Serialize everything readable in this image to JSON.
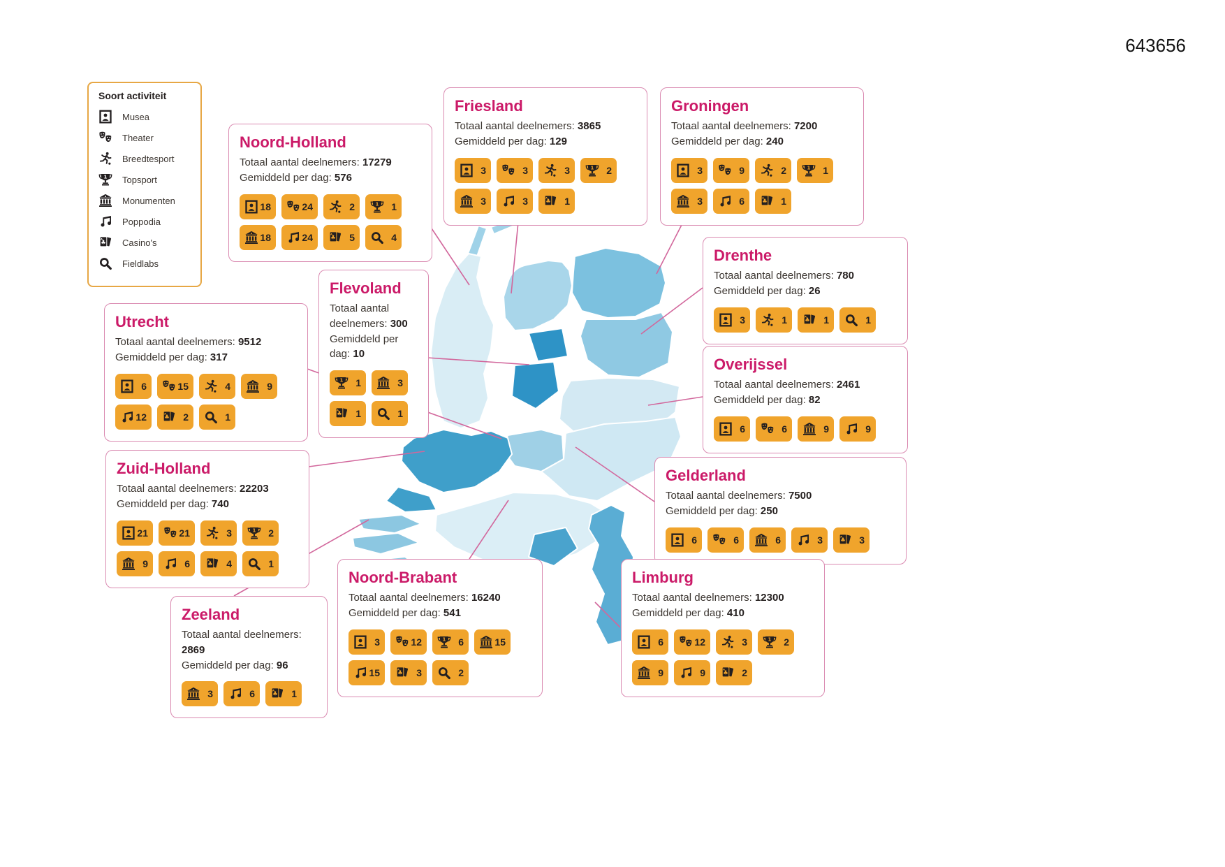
{
  "page": {
    "number": "643656"
  },
  "labels": {
    "total": "Totaal aantal deelnemers:",
    "per_day": "Gemiddeld per dag:"
  },
  "legend": {
    "title": "Soort activiteit",
    "items": [
      {
        "icon": "musea",
        "label": "Musea"
      },
      {
        "icon": "theater",
        "label": "Theater"
      },
      {
        "icon": "breedtesport",
        "label": "Breedtesport"
      },
      {
        "icon": "topsport",
        "label": "Topsport"
      },
      {
        "icon": "monumenten",
        "label": "Monumenten"
      },
      {
        "icon": "poppodia",
        "label": "Poppodia"
      },
      {
        "icon": "casinos",
        "label": "Casino's"
      },
      {
        "icon": "fieldlabs",
        "label": "Fieldlabs"
      }
    ]
  },
  "colors": {
    "accent_pink": "#cb1a68",
    "card_border_pink": "#da8ab1",
    "badge_orange": "#f0a42c",
    "legend_border_orange": "#e7a744",
    "icon_black": "#231f20",
    "map_blues": [
      "#dcEEf6",
      "#b8dcec",
      "#9fd2e8",
      "#8fc9e3",
      "#5aadd4",
      "#3f9fca",
      "#2e93c6"
    ]
  },
  "provinces": [
    {
      "id": "noord-holland",
      "name": "Noord-Holland",
      "total": "17279",
      "per_day": "576",
      "badges": [
        {
          "type": "musea",
          "value": "18"
        },
        {
          "type": "theater",
          "value": "24"
        },
        {
          "type": "breedtesport",
          "value": "2"
        },
        {
          "type": "topsport",
          "value": "1"
        },
        {
          "type": "monumenten",
          "value": "18"
        },
        {
          "type": "poppodia",
          "value": "24"
        },
        {
          "type": "casinos",
          "value": "5"
        },
        {
          "type": "fieldlabs",
          "value": "4"
        }
      ]
    },
    {
      "id": "friesland",
      "name": "Friesland",
      "total": "3865",
      "per_day": "129",
      "badges": [
        {
          "type": "musea",
          "value": "3"
        },
        {
          "type": "theater",
          "value": "3"
        },
        {
          "type": "breedtesport",
          "value": "3"
        },
        {
          "type": "topsport",
          "value": "2"
        },
        {
          "type": "monumenten",
          "value": "3"
        },
        {
          "type": "poppodia",
          "value": "3"
        },
        {
          "type": "casinos",
          "value": "1"
        }
      ]
    },
    {
      "id": "groningen",
      "name": "Groningen",
      "total": "7200",
      "per_day": "240",
      "badges": [
        {
          "type": "musea",
          "value": "3"
        },
        {
          "type": "theater",
          "value": "9"
        },
        {
          "type": "breedtesport",
          "value": "2"
        },
        {
          "type": "topsport",
          "value": "1"
        },
        {
          "type": "monumenten",
          "value": "3"
        },
        {
          "type": "poppodia",
          "value": "6"
        },
        {
          "type": "casinos",
          "value": "1"
        }
      ]
    },
    {
      "id": "drenthe",
      "name": "Drenthe",
      "total": "780",
      "per_day": "26",
      "badges": [
        {
          "type": "musea",
          "value": "3"
        },
        {
          "type": "breedtesport",
          "value": "1"
        },
        {
          "type": "casinos",
          "value": "1"
        },
        {
          "type": "fieldlabs",
          "value": "1"
        }
      ]
    },
    {
      "id": "flevoland",
      "name": "Flevoland",
      "total": "300",
      "per_day": "10",
      "badges": [
        {
          "type": "topsport",
          "value": "1"
        },
        {
          "type": "monumenten",
          "value": "3"
        },
        {
          "type": "casinos",
          "value": "1"
        },
        {
          "type": "fieldlabs",
          "value": "1"
        }
      ]
    },
    {
      "id": "overijssel",
      "name": "Overijssel",
      "total": "2461",
      "per_day": "82",
      "badges": [
        {
          "type": "musea",
          "value": "6"
        },
        {
          "type": "theater",
          "value": "6"
        },
        {
          "type": "monumenten",
          "value": "9"
        },
        {
          "type": "poppodia",
          "value": "9"
        }
      ]
    },
    {
      "id": "utrecht",
      "name": "Utrecht",
      "total": "9512",
      "per_day": "317",
      "badges": [
        {
          "type": "musea",
          "value": "6"
        },
        {
          "type": "theater",
          "value": "15"
        },
        {
          "type": "breedtesport",
          "value": "4"
        },
        {
          "type": "monumenten",
          "value": "9"
        },
        {
          "type": "poppodia",
          "value": "12"
        },
        {
          "type": "casinos",
          "value": "2"
        },
        {
          "type": "fieldlabs",
          "value": "1"
        }
      ]
    },
    {
      "id": "gelderland",
      "name": "Gelderland",
      "total": "7500",
      "per_day": "250",
      "badges": [
        {
          "type": "musea",
          "value": "6"
        },
        {
          "type": "theater",
          "value": "6"
        },
        {
          "type": "monumenten",
          "value": "6"
        },
        {
          "type": "poppodia",
          "value": "3"
        },
        {
          "type": "casinos",
          "value": "3"
        }
      ]
    },
    {
      "id": "zuid-holland",
      "name": "Zuid-Holland",
      "total": "22203",
      "per_day": "740",
      "badges": [
        {
          "type": "musea",
          "value": "21"
        },
        {
          "type": "theater",
          "value": "21"
        },
        {
          "type": "breedtesport",
          "value": "3"
        },
        {
          "type": "topsport",
          "value": "2"
        },
        {
          "type": "monumenten",
          "value": "9"
        },
        {
          "type": "poppodia",
          "value": "6"
        },
        {
          "type": "casinos",
          "value": "4"
        },
        {
          "type": "fieldlabs",
          "value": "1"
        }
      ]
    },
    {
      "id": "zeeland",
      "name": "Zeeland",
      "total": "2869",
      "per_day": "96",
      "badges": [
        {
          "type": "monumenten",
          "value": "3"
        },
        {
          "type": "poppodia",
          "value": "6"
        },
        {
          "type": "casinos",
          "value": "1"
        }
      ]
    },
    {
      "id": "noord-brabant",
      "name": "Noord-Brabant",
      "total": "16240",
      "per_day": "541",
      "badges": [
        {
          "type": "musea",
          "value": "3"
        },
        {
          "type": "theater",
          "value": "12"
        },
        {
          "type": "topsport",
          "value": "6"
        },
        {
          "type": "monumenten",
          "value": "15"
        },
        {
          "type": "poppodia",
          "value": "15"
        },
        {
          "type": "casinos",
          "value": "3"
        },
        {
          "type": "fieldlabs",
          "value": "2"
        }
      ]
    },
    {
      "id": "limburg",
      "name": "Limburg",
      "total": "12300",
      "per_day": "410",
      "badges": [
        {
          "type": "musea",
          "value": "6"
        },
        {
          "type": "theater",
          "value": "12"
        },
        {
          "type": "breedtesport",
          "value": "3"
        },
        {
          "type": "topsport",
          "value": "2"
        },
        {
          "type": "monumenten",
          "value": "9"
        },
        {
          "type": "poppodia",
          "value": "9"
        },
        {
          "type": "casinos",
          "value": "2"
        }
      ]
    }
  ]
}
